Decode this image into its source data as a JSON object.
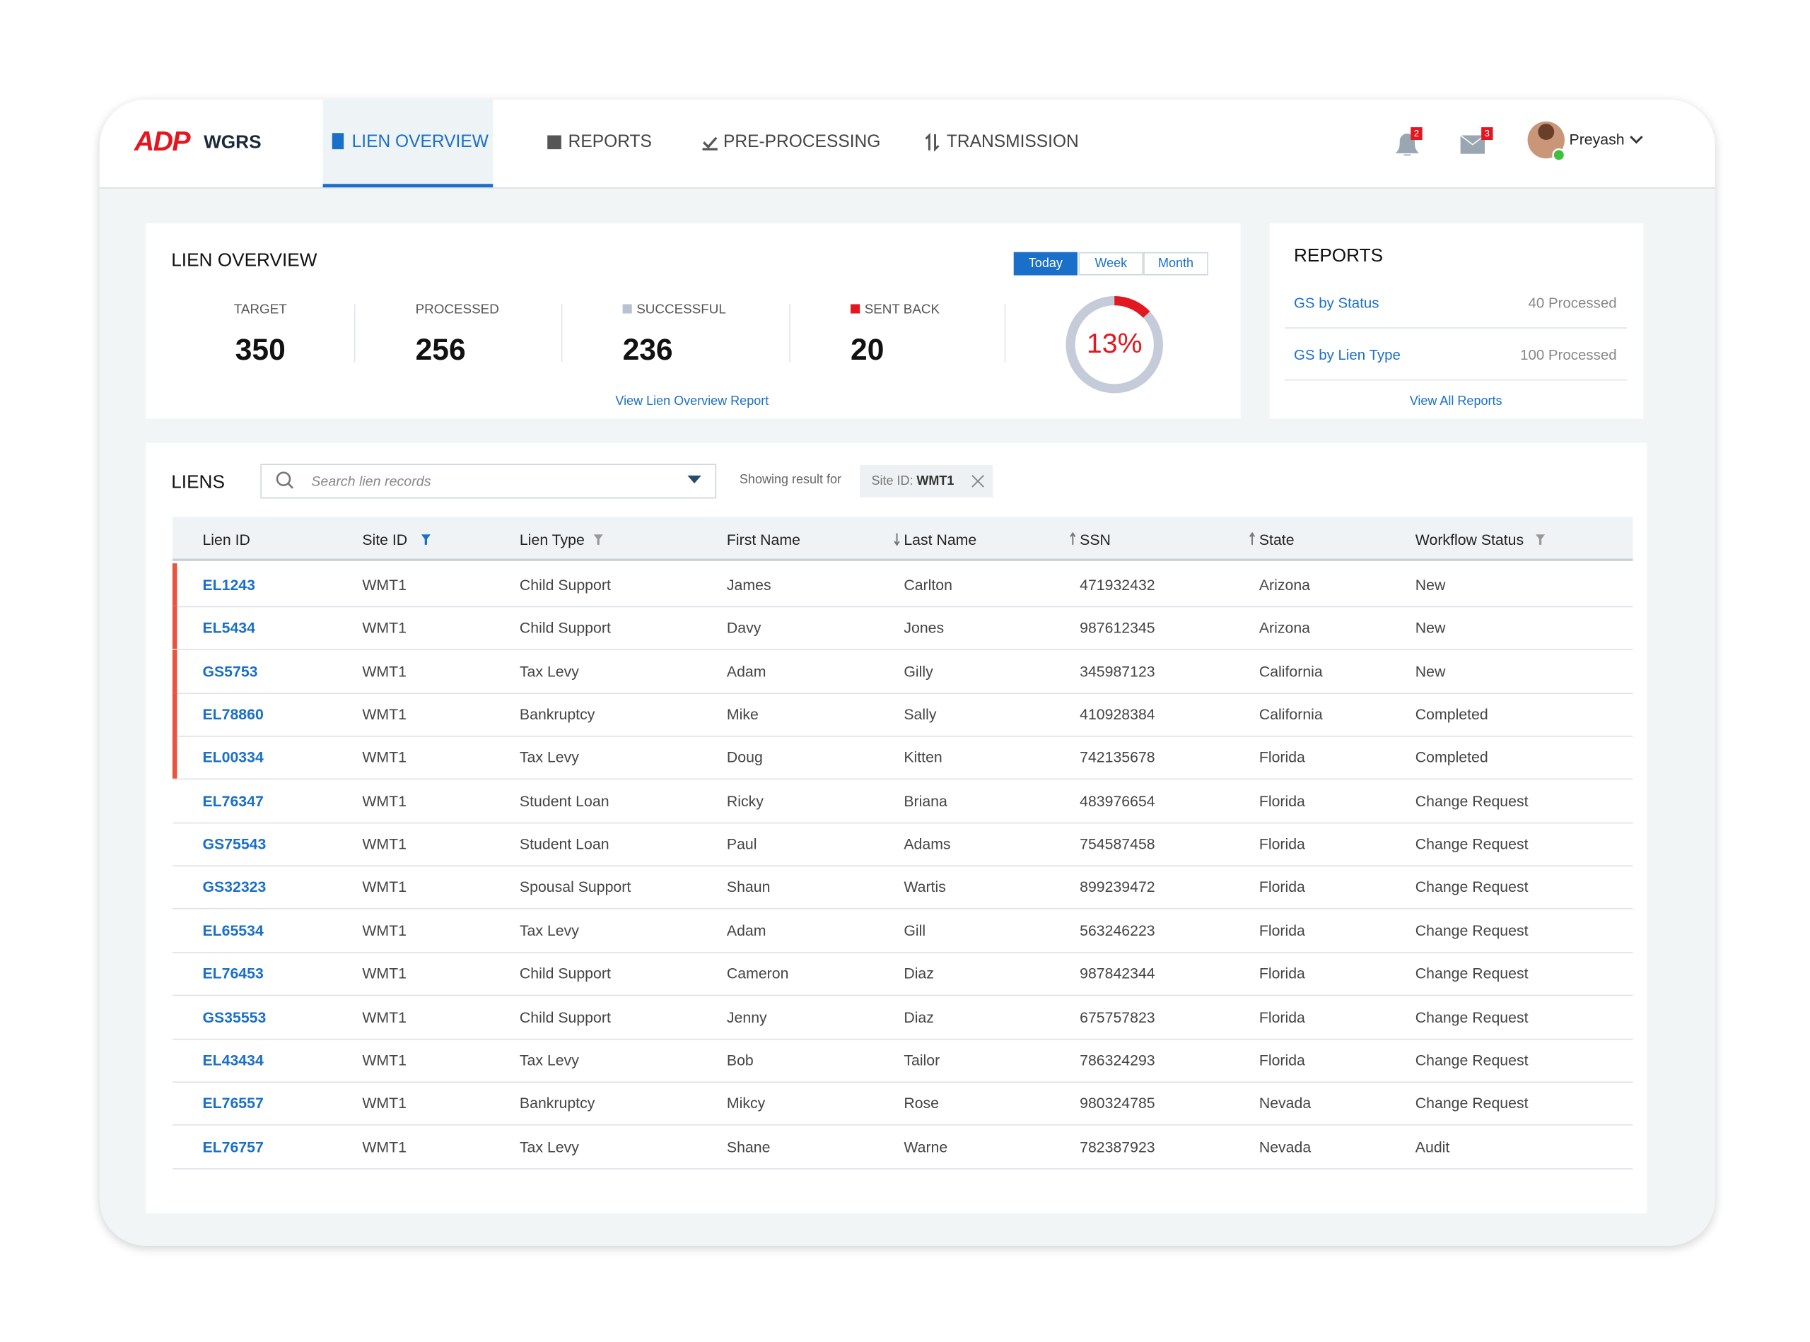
{
  "nav": {
    "brand": "ADP",
    "app": "WGRS",
    "tabs": [
      "LIEN OVERVIEW",
      "REPORTS",
      "PRE-PROCESSING",
      "TRANSMISSION"
    ],
    "notifications": "2",
    "messages": "3",
    "user": "Preyash"
  },
  "overview": {
    "title": "LIEN OVERVIEW",
    "ranges": [
      "Today",
      "Week",
      "Month"
    ],
    "stats": [
      {
        "label": "TARGET",
        "value": "350"
      },
      {
        "label": "PROCESSED",
        "value": "256"
      },
      {
        "label": "SUCCESSFUL",
        "value": "236"
      },
      {
        "label": "SENT BACK",
        "value": "20"
      }
    ],
    "donut": {
      "value": 13,
      "label": "13%"
    },
    "link": "View Lien Overview Report"
  },
  "reports": {
    "title": "REPORTS",
    "items": [
      {
        "name": "GS by Status",
        "count": "40 Processed"
      },
      {
        "name": "GS by Lien Type",
        "count": "100 Processed"
      }
    ],
    "link": "View All Reports"
  },
  "liens": {
    "title": "LIENS",
    "search_placeholder": "Search lien records",
    "showing": "Showing result for",
    "filter_label": "Site ID:",
    "filter_value": "WMT1",
    "table": {
      "headers": [
        "Lien ID",
        "Site ID",
        "Lien Type",
        "First Name",
        "Last Name",
        "SSN",
        "State",
        "Workflow Status"
      ],
      "rows": [
        [
          "EL1243",
          "WMT1",
          "Child Support",
          "James",
          "Carlton",
          "471932432",
          "Arizona",
          "New"
        ],
        [
          "EL5434",
          "WMT1",
          "Child Support",
          "Davy",
          "Jones",
          "987612345",
          "Arizona",
          "New"
        ],
        [
          "GS5753",
          "WMT1",
          "Tax Levy",
          "Adam",
          "Gilly",
          "345987123",
          "California",
          "New"
        ],
        [
          "EL78860",
          "WMT1",
          "Bankruptcy",
          "Mike",
          "Sally",
          "410928384",
          "California",
          "Completed"
        ],
        [
          "EL00334",
          "WMT1",
          "Tax Levy",
          "Doug",
          "Kitten",
          "742135678",
          "Florida",
          "Completed"
        ],
        [
          "EL76347",
          "WMT1",
          "Student Loan",
          "Ricky",
          "Briana",
          "483976654",
          "Florida",
          "Change Request"
        ],
        [
          "GS75543",
          "WMT1",
          "Student Loan",
          "Paul",
          "Adams",
          "754587458",
          "Florida",
          "Change Request"
        ],
        [
          "GS32323",
          "WMT1",
          "Spousal Support",
          "Shaun",
          "Wartis",
          "899239472",
          "Florida",
          "Change Request"
        ],
        [
          "EL65534",
          "WMT1",
          "Tax Levy",
          "Adam",
          "Gill",
          "563246223",
          "Florida",
          "Change Request"
        ],
        [
          "EL76453",
          "WMT1",
          "Child Support",
          "Cameron",
          "Diaz",
          "987842344",
          "Florida",
          "Change Request"
        ],
        [
          "GS35553",
          "WMT1",
          "Child Support",
          "Jenny",
          "Diaz",
          "675757823",
          "Florida",
          "Change Request"
        ],
        [
          "EL43434",
          "WMT1",
          "Tax Levy",
          "Bob",
          "Tailor",
          "786324293",
          "Florida",
          "Change Request"
        ],
        [
          "EL76557",
          "WMT1",
          "Bankruptcy",
          "Mikcy",
          "Rose",
          "980324785",
          "Nevada",
          "Change Request"
        ],
        [
          "EL76757",
          "WMT1",
          "Tax Levy",
          "Shane",
          "Warne",
          "782387923",
          "Nevada",
          "Audit"
        ]
      ],
      "flagged": [
        true,
        true,
        true,
        true,
        true,
        false,
        false,
        false,
        false,
        false,
        false,
        false,
        false,
        false
      ]
    }
  }
}
